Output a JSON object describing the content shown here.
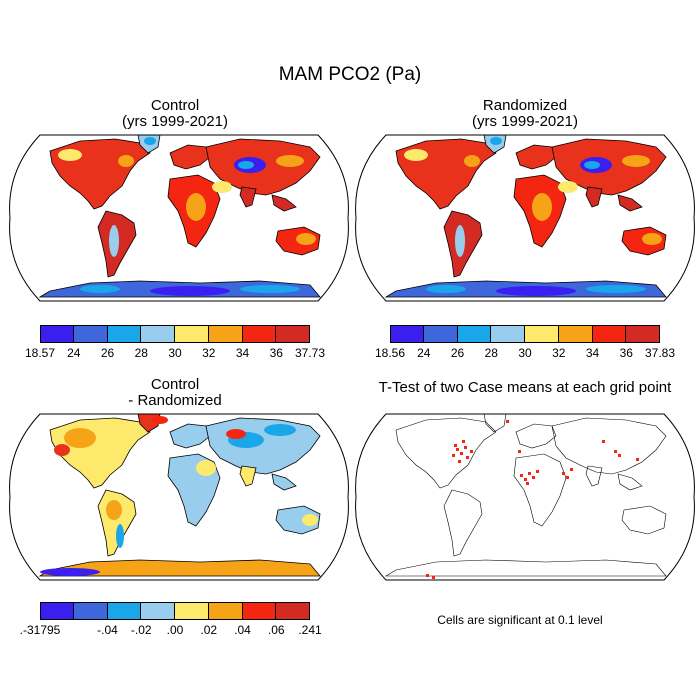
{
  "figure": {
    "title": "MAM PCO2 (Pa)",
    "footnote": "Cells are significant at 0.1 level"
  },
  "panels": [
    {
      "id": "control",
      "title_line1": "Control",
      "title_line2": "(yrs 1999-2021)",
      "colorbar": {
        "colors": [
          "#3a1ff0",
          "#3d67db",
          "#1aa7ea",
          "#99cdee",
          "#fde96c",
          "#f6a318",
          "#f42611",
          "#d42a24"
        ],
        "labels": [
          "18.57",
          "24",
          "26",
          "28",
          "30",
          "32",
          "34",
          "36",
          "37.73"
        ]
      }
    },
    {
      "id": "randomized",
      "title_line1": "Randomized",
      "title_line2": "(yrs 1999-2021)",
      "colorbar": {
        "colors": [
          "#3a1ff0",
          "#3d67db",
          "#1aa7ea",
          "#99cdee",
          "#fde96c",
          "#f6a318",
          "#f42611",
          "#d42a24"
        ],
        "labels": [
          "18.56",
          "24",
          "26",
          "28",
          "30",
          "32",
          "34",
          "36",
          "37.83"
        ]
      }
    },
    {
      "id": "difference",
      "title_line1": "Control",
      "title_line2": "- Randomized",
      "colorbar": {
        "colors": [
          "#3a1ff0",
          "#3d67db",
          "#1aa7ea",
          "#99cdee",
          "#fde96c",
          "#f6a318",
          "#f42611",
          "#d42a24"
        ],
        "labels": [
          ".-31795",
          "-.04",
          "-.02",
          ".00",
          ".02",
          ".04",
          ".06",
          ".241"
        ]
      }
    },
    {
      "id": "ttest",
      "title_line1": "T-Test of two Case means at each grid point",
      "title_line2": ""
    }
  ]
}
